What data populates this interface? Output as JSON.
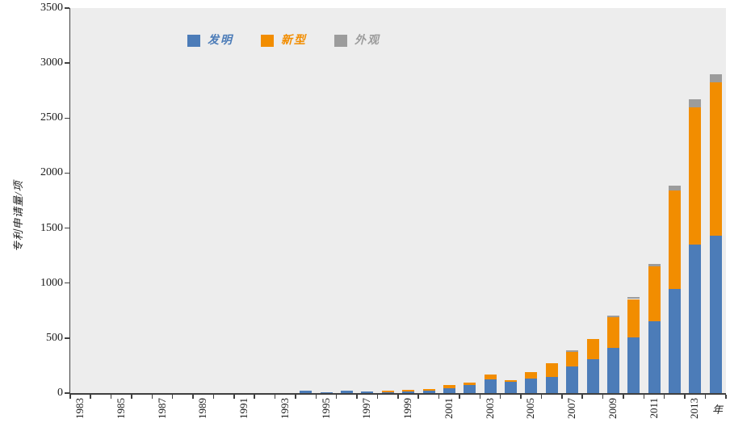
{
  "chart_data": {
    "type": "bar",
    "stacked": true,
    "title": "",
    "ylabel": "专利申请量/项",
    "xlabel_suffix": "年",
    "ylim": [
      0,
      3500
    ],
    "yticks": [
      0,
      500,
      1000,
      1500,
      2000,
      2500,
      3000,
      3500
    ],
    "grid": false,
    "legend_position": "top-left",
    "plot_background": "#EDEDED",
    "axis_color": "#404040",
    "categories": [
      1983,
      1984,
      1985,
      1986,
      1987,
      1988,
      1989,
      1990,
      1991,
      1992,
      1993,
      1994,
      1995,
      1996,
      1997,
      1998,
      1999,
      2000,
      2001,
      2002,
      2003,
      2004,
      2005,
      2006,
      2007,
      2008,
      2009,
      2010,
      2011,
      2012,
      2013,
      2014
    ],
    "xtick_labels": [
      "1983",
      "1985",
      "1987",
      "1989",
      "1991",
      "1993",
      "1995",
      "1997",
      "1999",
      "2001",
      "2003",
      "2005",
      "2007",
      "2009",
      "2011",
      "2013"
    ],
    "series": [
      {
        "name": "发明",
        "color": "#4C7CB8",
        "values": [
          0,
          0,
          0,
          0,
          0,
          0,
          0,
          0,
          0,
          0,
          0,
          20,
          5,
          20,
          15,
          10,
          15,
          20,
          45,
          70,
          125,
          100,
          130,
          145,
          240,
          310,
          410,
          505,
          655,
          950,
          1350,
          1430
        ]
      },
      {
        "name": "新型",
        "color": "#F28D00",
        "values": [
          0,
          0,
          0,
          0,
          0,
          0,
          0,
          0,
          0,
          0,
          0,
          0,
          0,
          0,
          0,
          12,
          15,
          15,
          25,
          25,
          45,
          20,
          60,
          125,
          135,
          185,
          280,
          350,
          495,
          890,
          1250,
          1395
        ]
      },
      {
        "name": "外观",
        "color": "#9C9C9C",
        "values": [
          0,
          0,
          0,
          0,
          0,
          0,
          0,
          0,
          0,
          0,
          0,
          0,
          0,
          0,
          0,
          0,
          0,
          0,
          0,
          0,
          0,
          0,
          0,
          0,
          15,
          0,
          15,
          20,
          25,
          45,
          70,
          75
        ]
      }
    ]
  }
}
